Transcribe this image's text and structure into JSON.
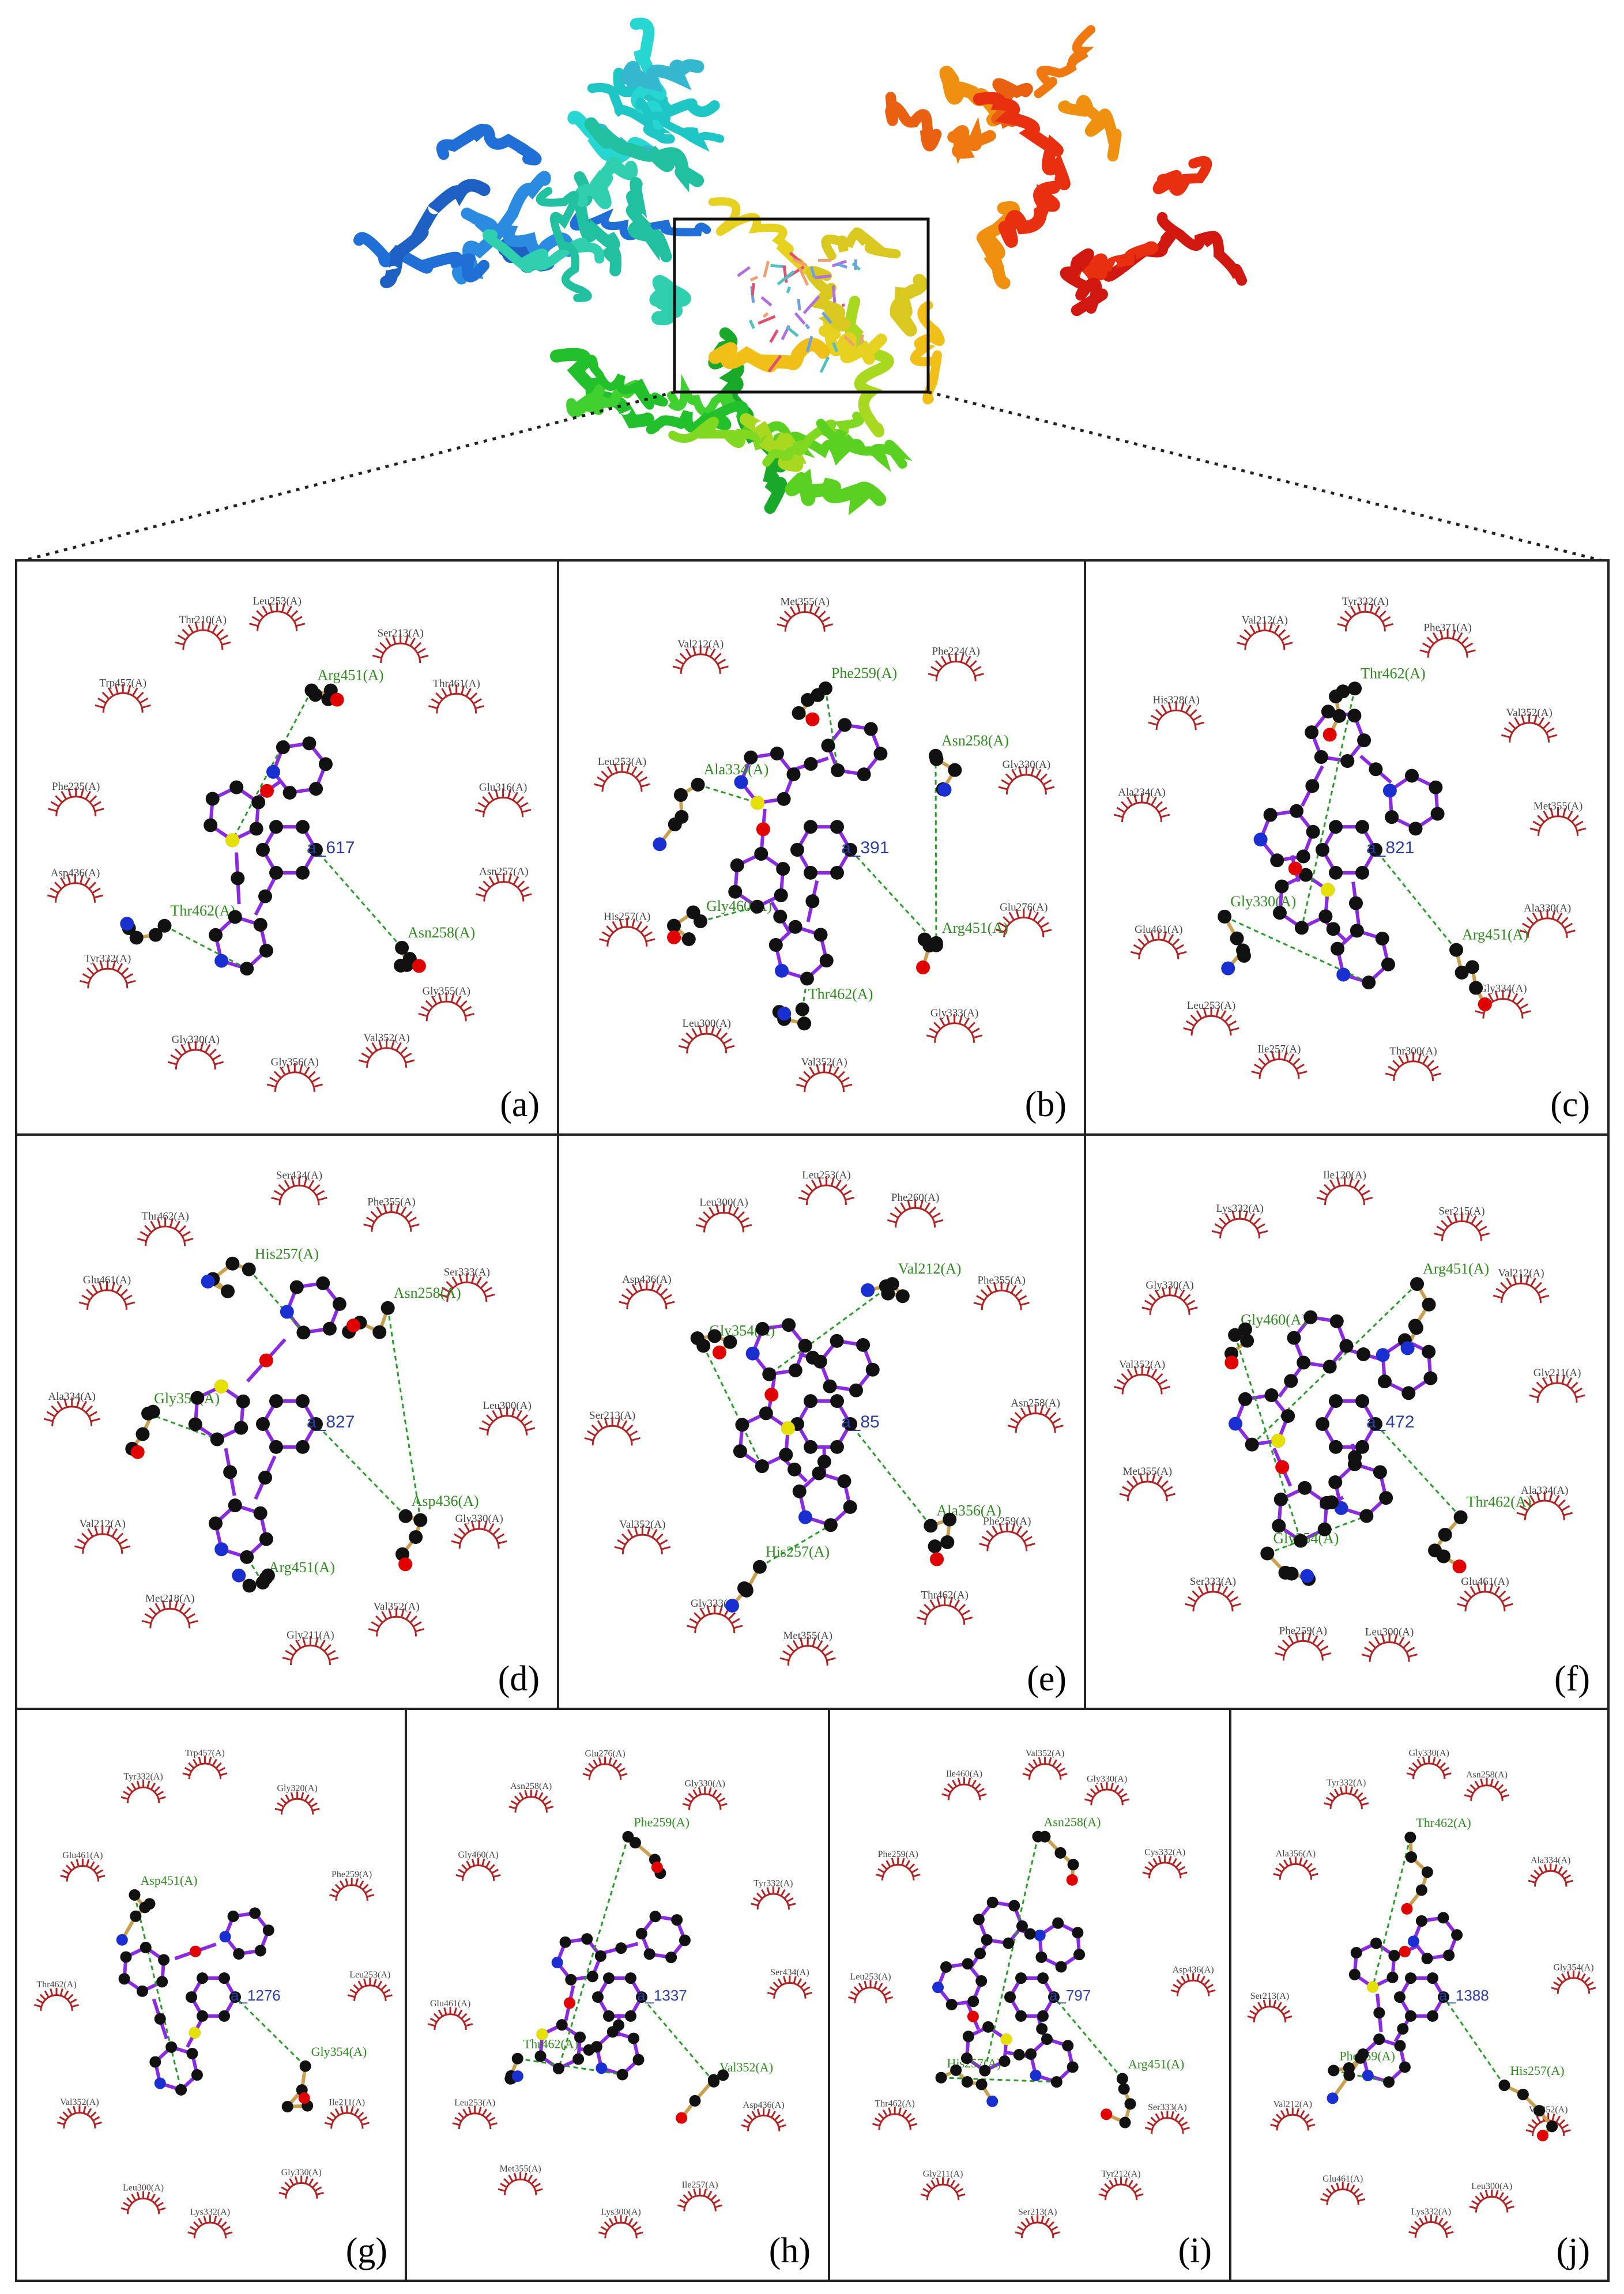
{
  "panels": [
    {
      "label": "(a)",
      "ligand": "a_617",
      "hbond_residues": [
        "Asn258(A)",
        "Thr462(A)",
        "Arg451(A)"
      ],
      "hydrophobic_residues": [
        "Leu253(A)",
        "Ser213(A)",
        "Thr461(A)",
        "Glu316(A)",
        "Asn257(A)",
        "Gly355(A)",
        "Val352(A)",
        "Gly356(A)",
        "Gly330(A)",
        "Tyr332(A)",
        "Asp436(A)",
        "Phe235(A)",
        "Trp457(A)",
        "Thr210(A)"
      ]
    },
    {
      "label": "(b)",
      "ligand": "a_391",
      "hbond_residues": [
        "Arg451(A)",
        "Thr462(A)",
        "Gly460(A)",
        "Ala334(A)",
        "Phe259(A)",
        "Asn258(A)"
      ],
      "hydrophobic_residues": [
        "Met355(A)",
        "Phe224(A)",
        "Gly330(A)",
        "Glu276(A)",
        "Gly333(A)",
        "Val352(A)",
        "Leu300(A)",
        "His257(A)",
        "Leu253(A)",
        "Val212(A)"
      ]
    },
    {
      "label": "(c)",
      "ligand": "a_821",
      "hbond_residues": [
        "Arg451(A)",
        "Gly330(A)",
        "Thr462(A)"
      ],
      "hydrophobic_residues": [
        "Tyr332(A)",
        "Phe371(A)",
        "Val352(A)",
        "Met355(A)",
        "Ala330(A)",
        "Gly334(A)",
        "Thr300(A)",
        "Ile257(A)",
        "Leu253(A)",
        "Glu461(A)",
        "Ala234(A)",
        "His328(A)",
        "Val212(A)"
      ]
    },
    {
      "label": "(d)",
      "ligand": "a_827",
      "hbond_residues": [
        "Asp436(A)",
        "Arg451(A)",
        "Gly354(A)",
        "His257(A)",
        "Asn258(A)"
      ],
      "hydrophobic_residues": [
        "Ser434(A)",
        "Phe355(A)",
        "Ser333(A)",
        "Leu300(A)",
        "Gly330(A)",
        "Val352(A)",
        "Gly211(A)",
        "Met218(A)",
        "Val212(A)",
        "Ala334(A)",
        "Glu461(A)",
        "Thr462(A)"
      ]
    },
    {
      "label": "(e)",
      "ligand": "a_85",
      "hbond_residues": [
        "Ala356(A)",
        "His257(A)",
        "Gly354(A)",
        "Val212(A)"
      ],
      "hydrophobic_residues": [
        "Leu253(A)",
        "Phe260(A)",
        "Phe355(A)",
        "Asn258(A)",
        "Phe259(A)",
        "Thr462(A)",
        "Met355(A)",
        "Gly333(A)",
        "Val352(A)",
        "Ser213(A)",
        "Asp436(A)",
        "Leu300(A)"
      ]
    },
    {
      "label": "(f)",
      "ligand": "a_472",
      "hbond_residues": [
        "Thr462(A)",
        "Gly354(A)",
        "Gly460(A)",
        "Arg451(A)"
      ],
      "hydrophobic_residues": [
        "Ile120(A)",
        "Ser215(A)",
        "Val212(A)",
        "Gly211(A)",
        "Ala334(A)",
        "Glu461(A)",
        "Leu300(A)",
        "Phe259(A)",
        "Ser333(A)",
        "Met355(A)",
        "Val352(A)",
        "Gly330(A)",
        "Lys332(A)"
      ]
    },
    {
      "label": "(g)",
      "ligand": "a_1276",
      "hbond_residues": [
        "Gly354(A)",
        "Asp451(A)"
      ],
      "hydrophobic_residues": [
        "Trp457(A)",
        "Gly320(A)",
        "Phe259(A)",
        "Leu253(A)",
        "Ile211(A)",
        "Gly330(A)",
        "Lys332(A)",
        "Leu300(A)",
        "Val352(A)",
        "Thr462(A)",
        "Glu461(A)",
        "Tyr332(A)"
      ]
    },
    {
      "label": "(h)",
      "ligand": "a_1337",
      "hbond_residues": [
        "Val352(A)",
        "Thr462(A)",
        "Phe259(A)"
      ],
      "hydrophobic_residues": [
        "Glu276(A)",
        "Gly330(A)",
        "Tyr332(A)",
        "Ser434(A)",
        "Asp436(A)",
        "Ile257(A)",
        "Lys300(A)",
        "Met355(A)",
        "Leu253(A)",
        "Glu461(A)",
        "Gly460(A)",
        "Asn258(A)"
      ]
    },
    {
      "label": "(i)",
      "ligand": "a_797",
      "hbond_residues": [
        "Arg451(A)",
        "His257(A)",
        "Asn258(A)"
      ],
      "hydrophobic_residues": [
        "Val352(A)",
        "Gly330(A)",
        "Cys332(A)",
        "Asp436(A)",
        "Ser333(A)",
        "Tyr212(A)",
        "Ser213(A)",
        "Gly211(A)",
        "Thr462(A)",
        "Leu253(A)",
        "Phe259(A)",
        "Ile460(A)"
      ]
    },
    {
      "label": "(j)",
      "ligand": "a_1388",
      "hbond_residues": [
        "His257(A)",
        "Phe259(A)",
        "Thr462(A)"
      ],
      "hydrophobic_residues": [
        "Gly330(A)",
        "Asn258(A)",
        "Ala334(A)",
        "Gly354(A)",
        "Val352(A)",
        "Leu300(A)",
        "Lys332(A)",
        "Glu461(A)",
        "Val212(A)",
        "Ser213(A)",
        "Ala356(A)",
        "Tyr332(A)"
      ]
    }
  ],
  "colors": {
    "hbond_label": "#2e8b1e",
    "hydrophobic_arc": "#b22222",
    "ligand_bond": "#8a2be2",
    "residue_bond": "#c8a050",
    "atom_carbon": "#111111",
    "atom_oxygen": "#e00000",
    "atom_nitrogen": "#1a2fd0",
    "atom_sulfur": "#e6e000",
    "ligand_id": "#2c3ea8"
  }
}
